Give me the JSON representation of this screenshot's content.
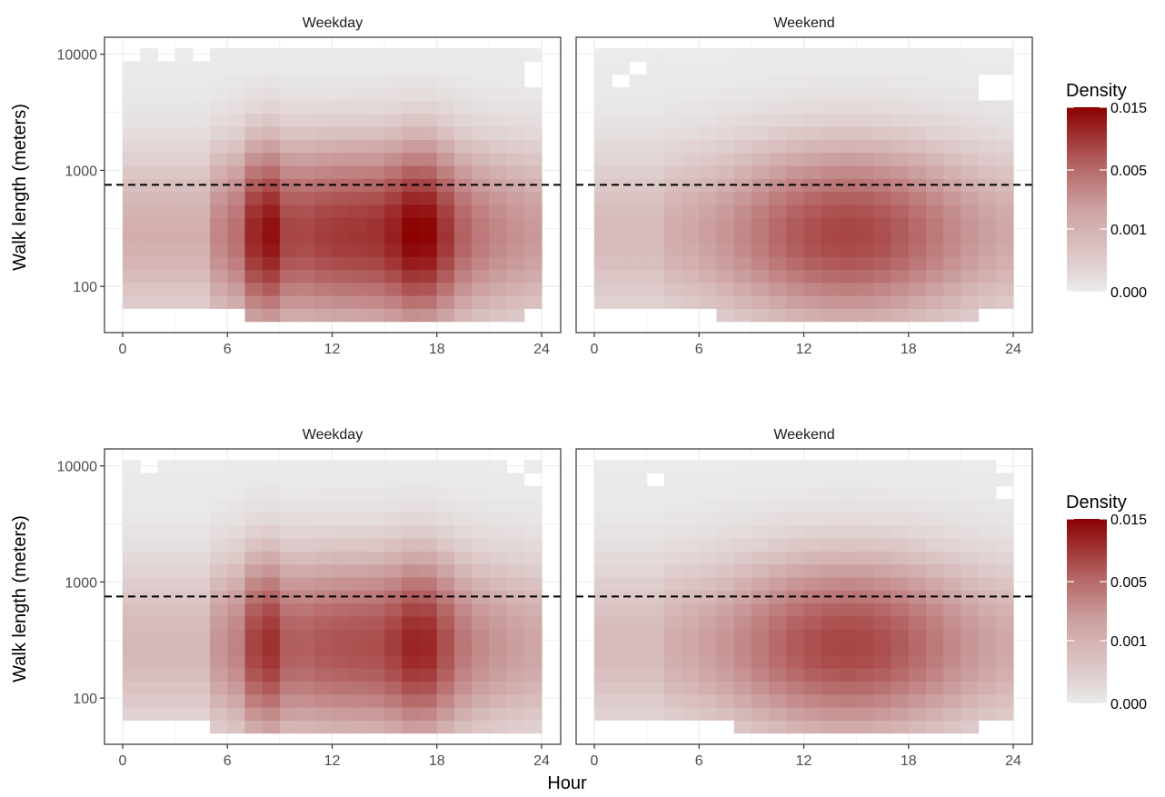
{
  "figure": {
    "xlabel": "Hour",
    "ylabel": "Walk length (meters)"
  },
  "legend": {
    "title": "Density",
    "labels": [
      "0.015",
      "0.005",
      "0.001",
      "0.000"
    ]
  },
  "colors": {
    "low": "#ebebeb",
    "high": "#8b0000",
    "dashed_line": "#000000",
    "panel_border": "#333333",
    "grid": "#ebebeb",
    "strip_text": "#1a1a1a",
    "tick_text": "#4d4d4d"
  },
  "chart_data": [
    {
      "type": "heatmap",
      "row": 1,
      "title": "Weekday",
      "xlabel": "Hour",
      "ylabel": "Walk length (meters)",
      "x_ticks": [
        "0",
        "6",
        "12",
        "18",
        "24"
      ],
      "x_range": [
        0,
        24
      ],
      "y_scale": "log10",
      "y_ticks": [
        "100",
        "1000",
        "10000"
      ],
      "y_range": [
        40,
        14000
      ],
      "reference_line_y": 750,
      "peaks": [
        {
          "hour": 7.5,
          "length": 230,
          "density": 0.015
        },
        {
          "hour": 17.5,
          "length": 230,
          "density": 0.011
        },
        {
          "hour": 16,
          "length": 230,
          "density": 0.009
        }
      ],
      "weekend": false,
      "intensity": 0.95,
      "empty_cells": [
        [
          0,
          9000
        ],
        [
          2,
          9000
        ],
        [
          4,
          9000
        ],
        [
          23,
          6000
        ],
        [
          0,
          50
        ],
        [
          1,
          50
        ],
        [
          2,
          50
        ],
        [
          3,
          50
        ],
        [
          4,
          50
        ],
        [
          5,
          50
        ],
        [
          6,
          50
        ],
        [
          23,
          45
        ]
      ]
    },
    {
      "type": "heatmap",
      "row": 1,
      "title": "Weekend",
      "xlabel": "Hour",
      "ylabel": "Walk length (meters)",
      "x_ticks": [
        "0",
        "6",
        "12",
        "18",
        "24"
      ],
      "x_range": [
        0,
        24
      ],
      "y_scale": "log10",
      "y_ticks": [
        "100",
        "1000",
        "10000"
      ],
      "y_range": [
        40,
        14000
      ],
      "reference_line_y": 750,
      "peaks": [
        {
          "hour": 14,
          "length": 250,
          "density": 0.004
        }
      ],
      "weekend": true,
      "intensity": 0.55,
      "empty_cells": [
        [
          2,
          6500
        ],
        [
          1,
          5200
        ],
        [
          22,
          4700
        ],
        [
          23,
          4700
        ],
        [
          6,
          50
        ],
        [
          0,
          45
        ],
        [
          1,
          45
        ],
        [
          2,
          45
        ],
        [
          3,
          45
        ],
        [
          4,
          45
        ],
        [
          5,
          45
        ],
        [
          22,
          45
        ],
        [
          23,
          45
        ]
      ]
    },
    {
      "type": "heatmap",
      "row": 2,
      "title": "Weekday",
      "xlabel": "Hour",
      "ylabel": "Walk length (meters)",
      "x_ticks": [
        "0",
        "6",
        "12",
        "18",
        "24"
      ],
      "x_range": [
        0,
        24
      ],
      "y_scale": "log10",
      "y_ticks": [
        "100",
        "1000",
        "10000"
      ],
      "y_range": [
        40,
        14000
      ],
      "reference_line_y": 750,
      "peaks": [
        {
          "hour": 15,
          "length": 300,
          "density": 0.007
        }
      ],
      "weekend": false,
      "intensity": 0.72,
      "empty_cells": [
        [
          1,
          9000
        ],
        [
          23,
          7000
        ],
        [
          22,
          9000
        ],
        [
          1,
          50
        ],
        [
          2,
          50
        ],
        [
          0,
          45
        ],
        [
          3,
          45
        ],
        [
          4,
          45
        ]
      ]
    },
    {
      "type": "heatmap",
      "row": 2,
      "title": "Weekend",
      "xlabel": "Hour",
      "ylabel": "Walk length (meters)",
      "x_ticks": [
        "0",
        "6",
        "12",
        "18",
        "24"
      ],
      "x_range": [
        0,
        24
      ],
      "y_scale": "log10",
      "y_ticks": [
        "100",
        "1000",
        "10000"
      ],
      "y_range": [
        40,
        14000
      ],
      "reference_line_y": 750,
      "peaks": [
        {
          "hour": 14,
          "length": 300,
          "density": 0.004
        }
      ],
      "weekend": true,
      "intensity": 0.55,
      "empty_cells": [
        [
          3,
          7000
        ],
        [
          23,
          9000
        ],
        [
          23,
          5200
        ],
        [
          1,
          50
        ],
        [
          23,
          50
        ],
        [
          0,
          45
        ],
        [
          2,
          45
        ],
        [
          3,
          45
        ],
        [
          4,
          45
        ],
        [
          5,
          45
        ],
        [
          6,
          45
        ],
        [
          7,
          45
        ],
        [
          22,
          45
        ],
        [
          23,
          45
        ]
      ]
    }
  ]
}
